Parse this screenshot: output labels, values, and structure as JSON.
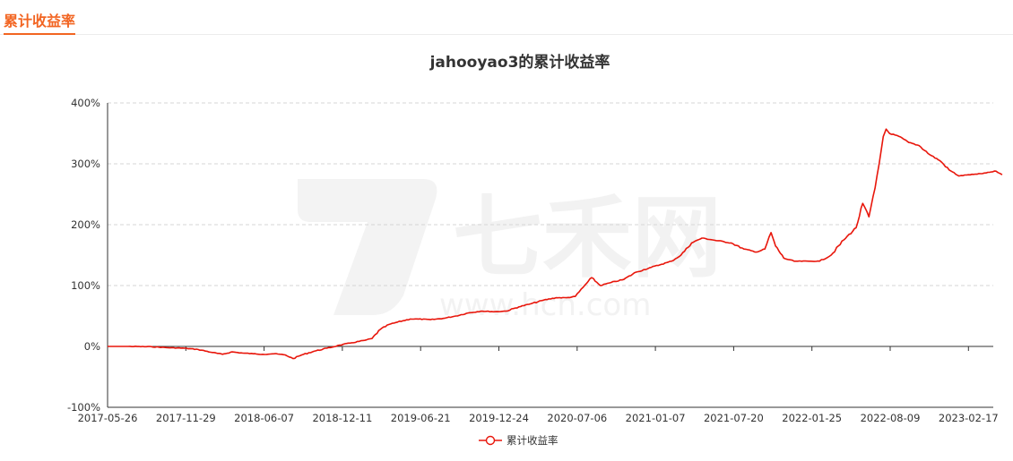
{
  "header": {
    "tab_label": "累计收益率"
  },
  "watermark": {
    "brand": "七禾网",
    "url": "www.hcn.com"
  },
  "chart_data": {
    "type": "line",
    "title": "jahooyao3的累计收益率",
    "xlabel": "",
    "ylabel": "",
    "ylim": [
      -100,
      400
    ],
    "y_ticks": [
      "-100%",
      "0%",
      "100%",
      "200%",
      "300%",
      "400%"
    ],
    "x_ticks": [
      "2017-05-26",
      "2017-11-29",
      "2018-06-07",
      "2018-12-11",
      "2019-06-21",
      "2019-12-24",
      "2020-07-06",
      "2021-01-07",
      "2021-07-20",
      "2022-01-25",
      "2022-08-09",
      "2023-02-17"
    ],
    "grid": true,
    "legend_position": "bottom-center",
    "series": [
      {
        "name": "累计收益率",
        "color": "#e8160b",
        "points": [
          [
            "2017-05-26",
            0
          ],
          [
            "2017-07-15",
            0
          ],
          [
            "2017-09-10",
            -0.5
          ],
          [
            "2017-10-20",
            -2
          ],
          [
            "2017-11-29",
            -3
          ],
          [
            "2018-01-01",
            -5
          ],
          [
            "2018-02-05",
            -10
          ],
          [
            "2018-03-01",
            -13
          ],
          [
            "2018-03-25",
            -9
          ],
          [
            "2018-04-20",
            -11
          ],
          [
            "2018-05-15",
            -12
          ],
          [
            "2018-06-07",
            -13
          ],
          [
            "2018-07-05",
            -12
          ],
          [
            "2018-08-01",
            -14
          ],
          [
            "2018-08-20",
            -20
          ],
          [
            "2018-09-10",
            -14
          ],
          [
            "2018-10-10",
            -8
          ],
          [
            "2018-11-10",
            -3
          ],
          [
            "2018-12-11",
            2
          ],
          [
            "2019-01-10",
            6
          ],
          [
            "2019-02-10",
            10
          ],
          [
            "2019-02-28",
            13
          ],
          [
            "2019-03-20",
            28
          ],
          [
            "2019-04-10",
            36
          ],
          [
            "2019-05-01",
            40
          ],
          [
            "2019-06-01",
            45
          ],
          [
            "2019-06-21",
            45
          ],
          [
            "2019-07-20",
            44
          ],
          [
            "2019-08-20",
            46
          ],
          [
            "2019-09-20",
            50
          ],
          [
            "2019-10-20",
            55
          ],
          [
            "2019-11-20",
            58
          ],
          [
            "2019-12-24",
            57
          ],
          [
            "2020-01-20",
            58
          ],
          [
            "2020-02-20",
            65
          ],
          [
            "2020-03-20",
            70
          ],
          [
            "2020-04-20",
            76
          ],
          [
            "2020-05-20",
            80
          ],
          [
            "2020-06-15",
            80
          ],
          [
            "2020-07-06",
            82
          ],
          [
            "2020-07-25",
            97
          ],
          [
            "2020-08-15",
            113
          ],
          [
            "2020-09-05",
            100
          ],
          [
            "2020-10-01",
            105
          ],
          [
            "2020-11-01",
            110
          ],
          [
            "2020-12-01",
            122
          ],
          [
            "2021-01-07",
            130
          ],
          [
            "2021-02-01",
            135
          ],
          [
            "2021-02-25",
            140
          ],
          [
            "2021-03-20",
            150
          ],
          [
            "2021-04-15",
            170
          ],
          [
            "2021-05-10",
            178
          ],
          [
            "2021-06-05",
            175
          ],
          [
            "2021-07-20",
            170
          ],
          [
            "2021-08-20",
            160
          ],
          [
            "2021-09-20",
            155
          ],
          [
            "2021-10-10",
            160
          ],
          [
            "2021-10-25",
            187
          ],
          [
            "2021-11-05",
            165
          ],
          [
            "2021-11-25",
            145
          ],
          [
            "2021-12-20",
            140
          ],
          [
            "2022-01-25",
            140
          ],
          [
            "2022-02-20",
            140
          ],
          [
            "2022-03-20",
            150
          ],
          [
            "2022-04-20",
            175
          ],
          [
            "2022-05-20",
            195
          ],
          [
            "2022-06-05",
            235
          ],
          [
            "2022-06-20",
            213
          ],
          [
            "2022-07-05",
            260
          ],
          [
            "2022-07-15",
            300
          ],
          [
            "2022-07-25",
            345
          ],
          [
            "2022-08-01",
            357
          ],
          [
            "2022-08-09",
            350
          ],
          [
            "2022-09-01",
            345
          ],
          [
            "2022-09-25",
            335
          ],
          [
            "2022-10-20",
            330
          ],
          [
            "2022-11-15",
            315
          ],
          [
            "2022-12-10",
            305
          ],
          [
            "2023-01-01",
            290
          ],
          [
            "2023-01-25",
            280
          ],
          [
            "2023-02-17",
            282
          ],
          [
            "2023-03-10",
            283
          ],
          [
            "2023-04-01",
            285
          ],
          [
            "2023-04-25",
            288
          ],
          [
            "2023-05-10",
            282
          ]
        ]
      }
    ]
  }
}
